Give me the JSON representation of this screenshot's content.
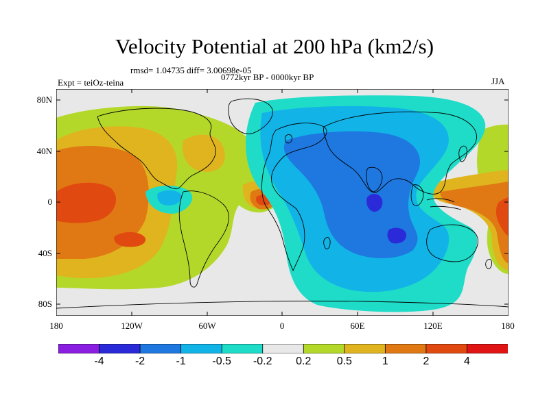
{
  "title": "Velocity Potential at 200 hPa (km2/s)",
  "stats_line": "rmsd= 1.04735 diff= 3.00698e-05",
  "experiment": "Expt = teiOz-teina",
  "period": "0772kyr BP - 0000kyr BP",
  "season": "JJA",
  "y_ticks": [
    "80N",
    "40N",
    "0",
    "40S",
    "80S"
  ],
  "x_ticks": [
    "180",
    "120W",
    "60W",
    "0",
    "60E",
    "120E",
    "180"
  ],
  "colorbar": {
    "labels": [
      "-4",
      "-2",
      "-1",
      "-0.5",
      "-0.2",
      "0.2",
      "0.5",
      "1",
      "2",
      "4"
    ],
    "colors": [
      "#8a1ee0",
      "#2a2ad8",
      "#1e78e0",
      "#12b4e8",
      "#1edcc8",
      "#e8e8e8",
      "#b4d82a",
      "#e0b41e",
      "#e07814",
      "#e04a10",
      "#e01414"
    ]
  }
}
